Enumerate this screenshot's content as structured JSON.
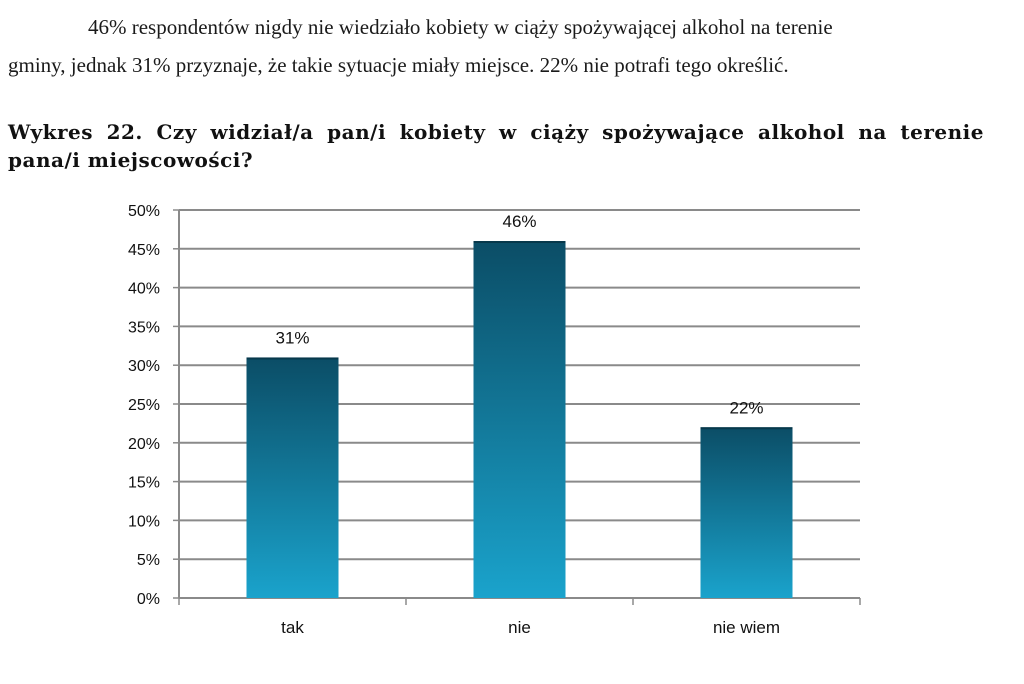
{
  "paragraph": {
    "line1": "46% respondentów nigdy nie wiedziało kobiety w ciąży spożywającej alkohol na terenie",
    "line2": "gminy, jednak 31% przyznaje, że takie sytuacje miały miejsce. 22% nie potrafi tego określić."
  },
  "caption": {
    "line1": "Wykres 22. Czy widział/a pan/i kobiety w ciąży spożywające alkohol na terenie",
    "line2": "pana/i miejscowości?"
  },
  "chart_data": {
    "type": "bar",
    "categories": [
      "tak",
      "nie",
      "nie wiem"
    ],
    "values": [
      31,
      46,
      22
    ],
    "data_labels": [
      "31%",
      "46%",
      "22%"
    ],
    "y_ticks": [
      "0%",
      "5%",
      "10%",
      "15%",
      "20%",
      "25%",
      "30%",
      "35%",
      "40%",
      "45%",
      "50%"
    ],
    "ylim": [
      0,
      50
    ],
    "grid": true,
    "title": "",
    "xlabel": "",
    "ylabel": "",
    "bar_colors": {
      "top": "#0b4d66",
      "bottom": "#1aa3cc"
    },
    "gridline_color": "#8a8a8a"
  }
}
